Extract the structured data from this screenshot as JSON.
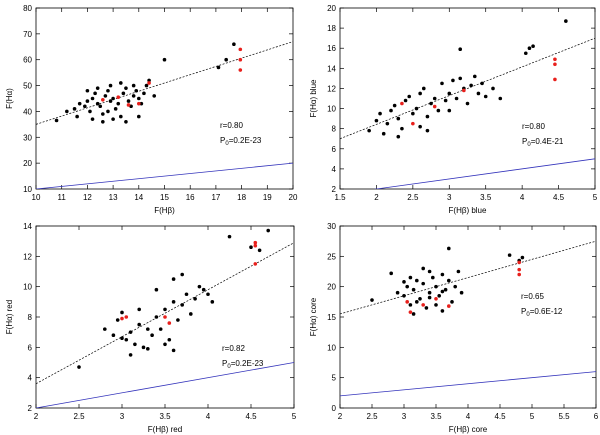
{
  "chart_data": [
    {
      "type": "scatter",
      "panel": "top-left",
      "xlabel": "F(Hβ)",
      "ylabel": "F(Hα)",
      "xlim": [
        10,
        20
      ],
      "ylim": [
        10,
        80
      ],
      "xticks": [
        "10",
        "11",
        "12",
        "13",
        "14",
        "15",
        "16",
        "17",
        "18",
        "19",
        "20"
      ],
      "yticks": [
        "10",
        "20",
        "30",
        "40",
        "50",
        "60",
        "70",
        "80"
      ],
      "stats": [
        "r=0.80",
        "P0=0.2E-23"
      ],
      "fit_line": [
        [
          10,
          35
        ],
        [
          20,
          67
        ]
      ],
      "reference_line": [
        [
          10,
          10
        ],
        [
          20,
          20
        ]
      ],
      "series": [
        {
          "name": "black",
          "points": [
            [
              10.8,
              36.5
            ],
            [
              11.2,
              40
            ],
            [
              11.5,
              41
            ],
            [
              11.7,
              43
            ],
            [
              11.9,
              42
            ],
            [
              12.0,
              44
            ],
            [
              12.1,
              40
            ],
            [
              12.2,
              45
            ],
            [
              12.3,
              47
            ],
            [
              12.4,
              43
            ],
            [
              12.5,
              42
            ],
            [
              12.6,
              39
            ],
            [
              12.7,
              46
            ],
            [
              12.8,
              48
            ],
            [
              12.9,
              44
            ],
            [
              13.0,
              45
            ],
            [
              13.1,
              41
            ],
            [
              13.2,
              43
            ],
            [
              13.3,
              38
            ],
            [
              13.4,
              47
            ],
            [
              13.5,
              49
            ],
            [
              13.6,
              44
            ],
            [
              13.7,
              42
            ],
            [
              13.8,
              46
            ],
            [
              13.9,
              48
            ],
            [
              14.0,
              45
            ],
            [
              14.1,
              43
            ],
            [
              14.2,
              47
            ],
            [
              14.3,
              50
            ],
            [
              14.4,
              52
            ],
            [
              12.2,
              37
            ],
            [
              12.6,
              36
            ],
            [
              13.0,
              37
            ],
            [
              13.5,
              36
            ],
            [
              14.0,
              38
            ],
            [
              12.0,
              48
            ],
            [
              12.9,
              50
            ],
            [
              13.3,
              51
            ],
            [
              14.6,
              46
            ],
            [
              15.0,
              60
            ],
            [
              17.1,
              57
            ],
            [
              17.4,
              60
            ],
            [
              17.7,
              66
            ],
            [
              12.4,
              49
            ],
            [
              13.8,
              50
            ],
            [
              11.6,
              38
            ],
            [
              12.8,
              40
            ]
          ]
        },
        {
          "name": "red",
          "points": [
            [
              12.6,
              44.5
            ],
            [
              13.2,
              45.5
            ],
            [
              13.6,
              42.5
            ],
            [
              14.4,
              51
            ],
            [
              14.0,
              43
            ],
            [
              17.95,
              64
            ],
            [
              17.95,
              60
            ],
            [
              17.95,
              56
            ]
          ]
        }
      ]
    },
    {
      "type": "scatter",
      "panel": "top-right",
      "xlabel": "F(Hβ) blue",
      "ylabel": "F(Hα) blue",
      "xlim": [
        1.5,
        5
      ],
      "ylim": [
        2,
        20
      ],
      "xticks": [
        "1.5",
        "2",
        "2.5",
        "3",
        "3.5",
        "4",
        "4.5",
        "5"
      ],
      "yticks": [
        "2",
        "4",
        "6",
        "8",
        "10",
        "12",
        "14",
        "16",
        "18",
        "20"
      ],
      "stats": [
        "r=0.80",
        "P0=0.4E-21"
      ],
      "fit_line": [
        [
          1.5,
          7
        ],
        [
          5,
          17
        ]
      ],
      "reference_line": [
        [
          1.5,
          1.5
        ],
        [
          5,
          5
        ]
      ],
      "series": [
        {
          "name": "black",
          "points": [
            [
              1.9,
              7.8
            ],
            [
              2.0,
              8.8
            ],
            [
              2.05,
              9.5
            ],
            [
              2.1,
              7.5
            ],
            [
              2.15,
              8.5
            ],
            [
              2.2,
              9.8
            ],
            [
              2.25,
              10.3
            ],
            [
              2.3,
              9
            ],
            [
              2.35,
              8
            ],
            [
              2.4,
              10.8
            ],
            [
              2.45,
              11.2
            ],
            [
              2.5,
              9.5
            ],
            [
              2.55,
              10
            ],
            [
              2.6,
              11.5
            ],
            [
              2.65,
              12
            ],
            [
              2.7,
              9.2
            ],
            [
              2.75,
              10.5
            ],
            [
              2.8,
              11
            ],
            [
              2.85,
              9.8
            ],
            [
              2.9,
              12.5
            ],
            [
              2.95,
              10.8
            ],
            [
              3.0,
              11.5
            ],
            [
              3.05,
              12.8
            ],
            [
              3.1,
              11
            ],
            [
              3.15,
              13
            ],
            [
              3.2,
              12
            ],
            [
              3.25,
              10.5
            ],
            [
              3.3,
              12.3
            ],
            [
              3.35,
              13.2
            ],
            [
              3.4,
              11.5
            ],
            [
              3.45,
              12.5
            ],
            [
              3.5,
              11.2
            ],
            [
              3.6,
              12
            ],
            [
              3.7,
              11
            ],
            [
              4.05,
              15.5
            ],
            [
              4.1,
              16
            ],
            [
              4.15,
              16.2
            ],
            [
              4.6,
              18.7
            ],
            [
              3.15,
              15.9
            ],
            [
              2.7,
              7.8
            ],
            [
              2.3,
              7.2
            ],
            [
              2.6,
              8.2
            ],
            [
              3.0,
              9.8
            ]
          ]
        },
        {
          "name": "red",
          "points": [
            [
              2.35,
              10.5
            ],
            [
              2.5,
              8.5
            ],
            [
              2.8,
              10.2
            ],
            [
              3.2,
              11.8
            ],
            [
              4.45,
              14.9
            ],
            [
              4.45,
              14.4
            ],
            [
              4.45,
              12.9
            ]
          ]
        }
      ]
    },
    {
      "type": "scatter",
      "panel": "bottom-left",
      "xlabel": "F(Hβ) red",
      "ylabel": "F(Hα) red",
      "xlim": [
        2,
        5
      ],
      "ylim": [
        2,
        14
      ],
      "xticks": [
        "2",
        "2.5",
        "3",
        "3.5",
        "4",
        "4.5",
        "5"
      ],
      "yticks": [
        "2",
        "4",
        "6",
        "8",
        "10",
        "12",
        "14"
      ],
      "stats": [
        "r=0.82",
        "P0=0.2E-23"
      ],
      "fit_line": [
        [
          2,
          3.6
        ],
        [
          5,
          12.9
        ]
      ],
      "reference_line": [
        [
          2,
          2
        ],
        [
          5,
          5
        ]
      ],
      "series": [
        {
          "name": "black",
          "points": [
            [
              2.5,
              4.7
            ],
            [
              2.8,
              7.2
            ],
            [
              2.9,
              6.8
            ],
            [
              2.95,
              7.8
            ],
            [
              3.0,
              8.3
            ],
            [
              3.05,
              6.5
            ],
            [
              3.1,
              7.0
            ],
            [
              3.15,
              6.2
            ],
            [
              3.2,
              7.5
            ],
            [
              3.25,
              6.0
            ],
            [
              3.3,
              5.9
            ],
            [
              3.35,
              6.8
            ],
            [
              3.4,
              8.0
            ],
            [
              3.45,
              7.2
            ],
            [
              3.5,
              8.5
            ],
            [
              3.55,
              6.5
            ],
            [
              3.6,
              9.0
            ],
            [
              3.65,
              7.8
            ],
            [
              3.7,
              8.8
            ],
            [
              3.75,
              9.5
            ],
            [
              3.8,
              8.2
            ],
            [
              3.85,
              9.2
            ],
            [
              3.9,
              10.0
            ],
            [
              3.95,
              9.8
            ],
            [
              4.0,
              9.5
            ],
            [
              4.05,
              9.0
            ],
            [
              3.3,
              7.2
            ],
            [
              3.5,
              6.2
            ],
            [
              3.2,
              8.5
            ],
            [
              3.6,
              10.5
            ],
            [
              3.7,
              10.8
            ],
            [
              3.4,
              9.8
            ],
            [
              4.25,
              13.3
            ],
            [
              4.5,
              12.6
            ],
            [
              4.7,
              13.7
            ],
            [
              4.6,
              12.4
            ],
            [
              3.6,
              5.8
            ],
            [
              3.1,
              5.5
            ],
            [
              3.0,
              6.6
            ]
          ]
        },
        {
          "name": "red",
          "points": [
            [
              3.0,
              7.9
            ],
            [
              3.05,
              8.0
            ],
            [
              3.5,
              8.0
            ],
            [
              3.55,
              7.6
            ],
            [
              4.55,
              12.9
            ],
            [
              4.55,
              12.7
            ],
            [
              4.55,
              11.5
            ]
          ]
        }
      ]
    },
    {
      "type": "scatter",
      "panel": "bottom-right",
      "xlabel": "F(Hβ) core",
      "ylabel": "F(Hα) core",
      "xlim": [
        2,
        6
      ],
      "ylim": [
        0,
        30
      ],
      "xticks": [
        "2",
        "2.5",
        "3",
        "3.5",
        "4",
        "4.5",
        "5",
        "5.5",
        "6"
      ],
      "yticks": [
        "0",
        "5",
        "10",
        "15",
        "20",
        "25",
        "30"
      ],
      "stats": [
        "r=0.65",
        "P0=0.6E-12"
      ],
      "fit_line": [
        [
          2,
          15.5
        ],
        [
          6,
          27.5
        ]
      ],
      "reference_line": [
        [
          2,
          2
        ],
        [
          6,
          6
        ]
      ],
      "series": [
        {
          "name": "black",
          "points": [
            [
              2.5,
              17.8
            ],
            [
              2.8,
              22.2
            ],
            [
              2.9,
              19
            ],
            [
              3.0,
              18.5
            ],
            [
              3.05,
              20
            ],
            [
              3.1,
              17
            ],
            [
              3.15,
              19.5
            ],
            [
              3.2,
              21
            ],
            [
              3.25,
              18
            ],
            [
              3.3,
              20.5
            ],
            [
              3.35,
              16.5
            ],
            [
              3.4,
              19
            ],
            [
              3.45,
              21.5
            ],
            [
              3.5,
              20
            ],
            [
              3.55,
              18.5
            ],
            [
              3.6,
              22
            ],
            [
              3.65,
              19.5
            ],
            [
              3.7,
              21
            ],
            [
              3.75,
              17.5
            ],
            [
              3.8,
              20
            ],
            [
              3.85,
              22.5
            ],
            [
              3.9,
              19
            ],
            [
              3.2,
              17.5
            ],
            [
              3.4,
              22.5
            ],
            [
              3.5,
              17
            ],
            [
              3.6,
              16
            ],
            [
              3.3,
              23
            ],
            [
              3.1,
              21.5
            ],
            [
              3.0,
              20.8
            ],
            [
              3.7,
              26.3
            ],
            [
              4.65,
              25.2
            ],
            [
              4.8,
              24.3
            ],
            [
              4.85,
              24.8
            ],
            [
              3.15,
              15.5
            ],
            [
              3.4,
              18.2
            ],
            [
              3.6,
              19.2
            ]
          ]
        },
        {
          "name": "red",
          "points": [
            [
              3.05,
              17.5
            ],
            [
              3.1,
              15.8
            ],
            [
              3.3,
              17
            ],
            [
              3.5,
              18
            ],
            [
              3.7,
              16.8
            ],
            [
              4.8,
              24
            ],
            [
              4.8,
              22.8
            ],
            [
              4.8,
              22
            ]
          ]
        }
      ]
    }
  ]
}
